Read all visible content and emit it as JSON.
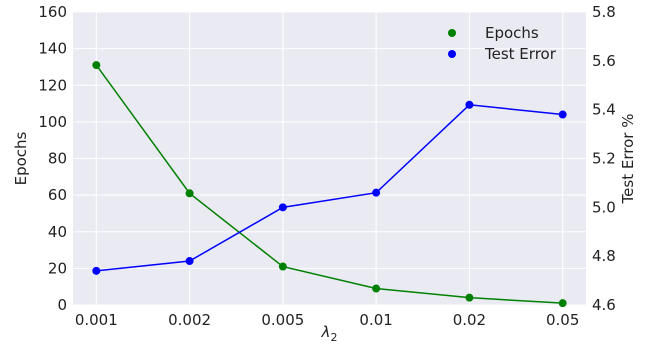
{
  "chart_data": {
    "type": "line",
    "categories": [
      "0.001",
      "0.002",
      "0.005",
      "0.01",
      "0.02",
      "0.05"
    ],
    "xlabel_base": "λ",
    "xlabel_sub": "2",
    "y_left": {
      "label": "Epochs",
      "lim": [
        0,
        160
      ],
      "ticks": [
        0,
        20,
        40,
        60,
        80,
        100,
        120,
        140,
        160
      ]
    },
    "y_right": {
      "label": "Test Error %",
      "lim": [
        4.6,
        5.8
      ],
      "ticks": [
        "4.6",
        "4.8",
        "5.0",
        "5.2",
        "5.4",
        "5.6",
        "5.8"
      ]
    },
    "series": [
      {
        "name": "Epochs",
        "axis": "left",
        "color": "#008000",
        "values": [
          131,
          61,
          21,
          9,
          4,
          1
        ]
      },
      {
        "name": "Test Error",
        "axis": "right",
        "color": "#0000ff",
        "values": [
          4.74,
          4.78,
          5.0,
          5.06,
          5.42,
          5.38
        ]
      }
    ],
    "grid": true,
    "legend_position": "top-right",
    "background": "#eaeaf2"
  }
}
